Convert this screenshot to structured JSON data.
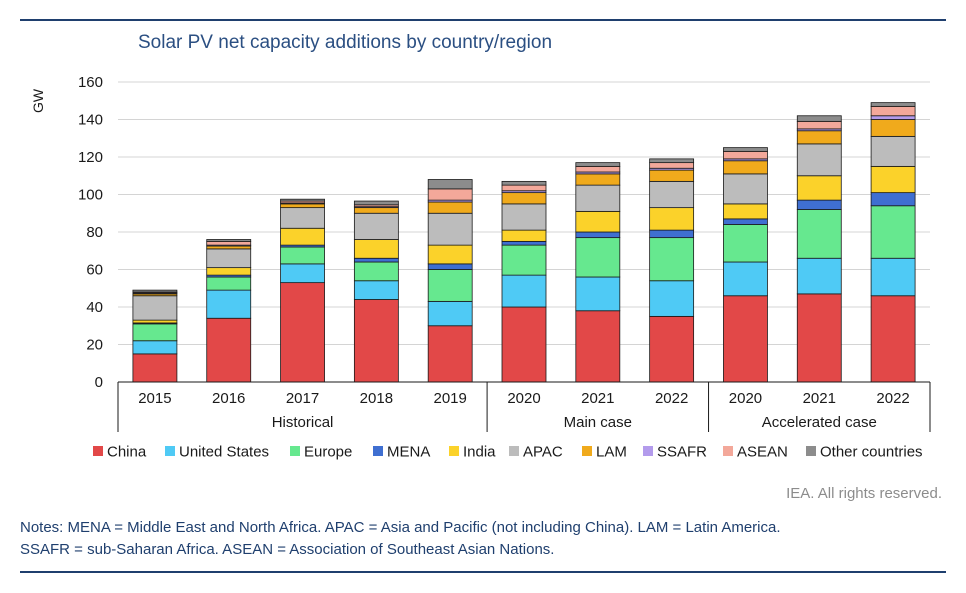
{
  "title": "Solar PV net capacity additions by country/region",
  "credit": "IEA. All rights reserved.",
  "notes": [
    "Notes: MENA = Middle East and North Africa. APAC = Asia and Pacific (not including China). LAM = Latin America.",
    "SSAFR = sub-Saharan Africa. ASEAN = Association of Southeast Asian Nations."
  ],
  "colors": {
    "China": "#e24848",
    "United States": "#4fcaf5",
    "Europe": "#66e88f",
    "MENA": "#3f6fd1",
    "India": "#fbd22a",
    "APAC": "#bcbcbc",
    "LAM": "#f0aa1c",
    "SSAFR": "#b39bec",
    "ASEAN": "#f3a89a",
    "Other countries": "#8c8c8c"
  },
  "chart_data": {
    "type": "bar",
    "stacked": true,
    "ylabel": "GW",
    "ylim": [
      0,
      160
    ],
    "yticks": [
      0,
      20,
      40,
      60,
      80,
      100,
      120,
      140,
      160
    ],
    "legend_position": "bottom",
    "grid": true,
    "categories": [
      "2015",
      "2016",
      "2017",
      "2018",
      "2019",
      "2020",
      "2021",
      "2022",
      "2020",
      "2021",
      "2022"
    ],
    "groups": [
      {
        "label": "Historical",
        "start": 0,
        "end": 4
      },
      {
        "label": "Main case",
        "start": 5,
        "end": 7
      },
      {
        "label": "Accelerated case",
        "start": 8,
        "end": 10
      }
    ],
    "series": [
      {
        "name": "China",
        "values": [
          15,
          34,
          53,
          44,
          30,
          40,
          38,
          35,
          46,
          47,
          46
        ]
      },
      {
        "name": "United States",
        "values": [
          7,
          15,
          10,
          10,
          13,
          17,
          18,
          19,
          18,
          19,
          20
        ]
      },
      {
        "name": "Europe",
        "values": [
          9,
          7,
          9,
          10,
          17,
          16,
          21,
          23,
          20,
          26,
          28
        ]
      },
      {
        "name": "MENA",
        "values": [
          0.5,
          1,
          1,
          2,
          3,
          2,
          3,
          4,
          3,
          5,
          7
        ]
      },
      {
        "name": "India",
        "values": [
          1.5,
          4,
          9,
          10,
          10,
          6,
          11,
          12,
          8,
          13,
          14
        ]
      },
      {
        "name": "APAC",
        "values": [
          13,
          10,
          11,
          14,
          17,
          14,
          14,
          14,
          16,
          17,
          16
        ]
      },
      {
        "name": "LAM",
        "values": [
          1,
          1.5,
          2,
          3,
          6,
          6,
          6,
          6,
          7,
          7,
          9
        ]
      },
      {
        "name": "SSAFR",
        "values": [
          0.5,
          0.5,
          0.5,
          0.5,
          1,
          1,
          1,
          1,
          1,
          1,
          2
        ]
      },
      {
        "name": "ASEAN",
        "values": [
          0.5,
          2,
          1,
          1,
          6,
          3,
          3,
          3,
          4,
          4,
          5
        ]
      },
      {
        "name": "Other countries",
        "values": [
          1,
          1,
          1,
          2,
          5,
          2,
          2,
          2,
          2,
          3,
          2
        ]
      }
    ]
  }
}
